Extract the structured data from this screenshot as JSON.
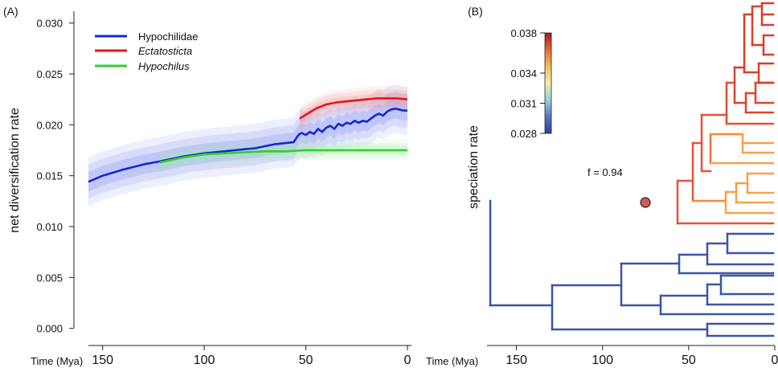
{
  "chart_data": [
    {
      "panel": "(A)",
      "type": "line",
      "xlabel": "Time (Mya)",
      "ylabel": "net diversification rate",
      "xlim": [
        157,
        -2
      ],
      "ylim": [
        -0.0005,
        0.031
      ],
      "x_ticks": [
        150,
        100,
        50,
        0
      ],
      "x_tick_labels": [
        "150",
        "100",
        "50",
        "0"
      ],
      "y_ticks": [
        0.0,
        0.005,
        0.01,
        0.015,
        0.02,
        0.025,
        0.03
      ],
      "y_tick_labels": [
        "0.000",
        "0.005",
        "0.010",
        "0.015",
        "0.020",
        "0.025",
        "0.030"
      ],
      "legend_position": "top-left",
      "series": [
        {
          "name": "Hypochilidae",
          "color": "#1428d2",
          "band_color": "#6f7cf0",
          "band_halfwidth": 0.0024,
          "x": [
            157,
            150,
            140,
            130,
            122,
            110,
            100,
            90,
            80,
            75,
            70,
            65,
            60,
            56,
            55,
            54,
            53,
            52,
            50,
            48,
            46,
            44,
            42,
            40,
            38,
            36,
            34,
            32,
            30,
            28,
            26,
            24,
            22,
            20,
            18,
            16,
            14,
            12,
            10,
            8,
            6,
            4,
            2,
            0
          ],
          "y": [
            0.0144,
            0.015,
            0.0156,
            0.0161,
            0.0164,
            0.0169,
            0.0172,
            0.0174,
            0.0176,
            0.0177,
            0.0179,
            0.0181,
            0.0182,
            0.0183,
            0.0186,
            0.0189,
            0.0191,
            0.0192,
            0.019,
            0.0193,
            0.0191,
            0.0196,
            0.0193,
            0.0197,
            0.0199,
            0.0196,
            0.0201,
            0.0199,
            0.0202,
            0.0201,
            0.0204,
            0.0202,
            0.0204,
            0.0203,
            0.0206,
            0.0209,
            0.0211,
            0.0209,
            0.0213,
            0.0215,
            0.0216,
            0.0215,
            0.0214,
            0.0214
          ]
        },
        {
          "name": "Ectatosticta",
          "color": "#e01818",
          "band_color": "#f48a8a",
          "band_halfwidth": 0.0012,
          "x": [
            53,
            50,
            45,
            40,
            35,
            30,
            25,
            20,
            15,
            10,
            5,
            0
          ],
          "y": [
            0.0206,
            0.021,
            0.0216,
            0.022,
            0.0222,
            0.0223,
            0.0224,
            0.0225,
            0.0226,
            0.0226,
            0.0226,
            0.0225
          ]
        },
        {
          "name": "Hypochilus",
          "color": "#2ed02e",
          "band_color": "#9ef09e",
          "band_halfwidth": 0.001,
          "x": [
            122,
            110,
            100,
            90,
            80,
            70,
            60,
            50,
            40,
            30,
            20,
            10,
            0
          ],
          "y": [
            0.0163,
            0.0168,
            0.0171,
            0.0172,
            0.0173,
            0.0174,
            0.0174,
            0.0175,
            0.0175,
            0.0175,
            0.0175,
            0.0175,
            0.0175
          ]
        }
      ]
    },
    {
      "panel": "(B)",
      "type": "tree",
      "xlabel": "Time (Mya)",
      "ylabel": "speciation rate",
      "xlim": [
        168,
        0
      ],
      "x_ticks": [
        150,
        100,
        50,
        0
      ],
      "x_tick_labels": [
        "150",
        "100",
        "50",
        "0"
      ],
      "annotation": "f = 0.94",
      "colorbar": {
        "min": 0.028,
        "max": 0.038,
        "ticks": [
          0.028,
          0.031,
          0.034,
          0.038
        ],
        "tick_labels": [
          "0.028",
          "0.031",
          "0.034",
          "0.038"
        ],
        "colors": [
          "#2d3f94",
          "#5578c0",
          "#9ad0d8",
          "#f2eeb0",
          "#f5bc5a",
          "#ec6a34",
          "#a8142a"
        ]
      },
      "upper_clade_rate": 0.036,
      "upper_clade_rate_light": 0.034,
      "lower_clade_rate": 0.0295,
      "root_rate": 0.0293
    }
  ]
}
